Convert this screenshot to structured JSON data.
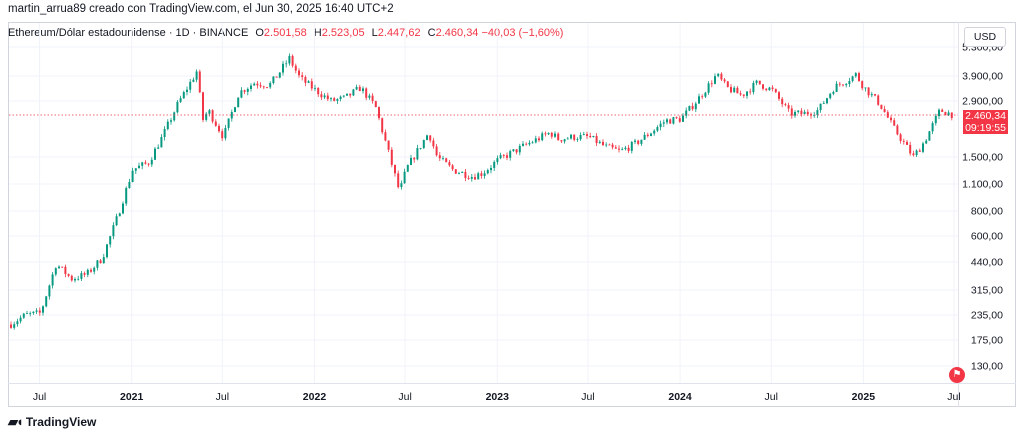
{
  "header": {
    "credit": "martin_arrua89 creado con TradingView.com, el Jun 30, 2025 16:40 UTC+2"
  },
  "legend": {
    "symbol": "Ethereum/Dólar estadounidense · 1D · BINANCE",
    "o_label": "O",
    "o_value": "2.501,58",
    "h_label": "H",
    "h_value": "2.523,05",
    "l_label": "L",
    "l_value": "2.447,62",
    "c_label": "C",
    "c_value": "2.460,34",
    "change": "−40,03 (−1,60%)"
  },
  "axis": {
    "currency": "USD",
    "last_price": "2.460,34",
    "countdown": "09:19:55",
    "y_ticks": [
      "5.300,00",
      "3.900,00",
      "2.900,00",
      "1.500,00",
      "1.100,00",
      "800,00",
      "600,00",
      "440,00",
      "315,00",
      "235,00",
      "175,00",
      "130,00"
    ],
    "x_ticks": [
      "Jul",
      "2021",
      "Jul",
      "2022",
      "Jul",
      "2023",
      "Jul",
      "2024",
      "Jul",
      "2025",
      "Jul"
    ]
  },
  "footer": {
    "brand": "TradingView"
  },
  "colors": {
    "up": "#089981",
    "down": "#f23645",
    "grid": "#f0f3fa",
    "axis_text": "#131722"
  },
  "chart_data": {
    "type": "line",
    "title": "Ethereum/Dólar estadounidense · 1D · BINANCE",
    "scale": "log",
    "ylim": [
      110,
      5500
    ],
    "xlim": [
      "2020-05-01",
      "2025-07-01"
    ],
    "legend_position": "top-left",
    "grid": true,
    "last_price": 2460.34,
    "x": [
      "2020-05-01",
      "2020-06-01",
      "2020-07-01",
      "2020-08-01",
      "2020-09-01",
      "2020-10-01",
      "2020-11-01",
      "2020-12-01",
      "2021-01-01",
      "2021-02-01",
      "2021-03-01",
      "2021-04-01",
      "2021-05-10",
      "2021-05-20",
      "2021-06-01",
      "2021-07-01",
      "2021-08-01",
      "2021-09-01",
      "2021-10-01",
      "2021-11-10",
      "2021-12-01",
      "2022-01-01",
      "2022-02-01",
      "2022-03-01",
      "2022-04-01",
      "2022-05-01",
      "2022-06-18",
      "2022-07-01",
      "2022-08-15",
      "2022-09-01",
      "2022-10-01",
      "2022-11-10",
      "2022-12-01",
      "2023-01-01",
      "2023-02-01",
      "2023-03-01",
      "2023-04-15",
      "2023-05-01",
      "2023-06-01",
      "2023-07-01",
      "2023-08-01",
      "2023-09-01",
      "2023-10-01",
      "2023-11-01",
      "2023-12-01",
      "2024-01-01",
      "2024-02-01",
      "2024-03-12",
      "2024-04-01",
      "2024-05-01",
      "2024-06-01",
      "2024-07-01",
      "2024-08-05",
      "2024-09-01",
      "2024-10-01",
      "2024-11-01",
      "2024-12-15",
      "2025-01-01",
      "2025-02-01",
      "2025-03-01",
      "2025-04-09",
      "2025-05-01",
      "2025-06-01",
      "2025-06-30"
    ],
    "y": [
      210,
      235,
      240,
      430,
      360,
      380,
      460,
      740,
      1300,
      1400,
      1900,
      2800,
      4150,
      2300,
      2600,
      1900,
      3200,
      3600,
      3500,
      4700,
      3800,
      3300,
      2900,
      3000,
      3400,
      2700,
      1000,
      1300,
      2000,
      1500,
      1300,
      1200,
      1250,
      1450,
      1600,
      1750,
      2000,
      1850,
      1900,
      1900,
      1700,
      1600,
      1750,
      2000,
      2300,
      2350,
      2900,
      3950,
      3400,
      3100,
      3600,
      3300,
      2500,
      2500,
      2600,
      3400,
      3950,
      3400,
      2800,
      2100,
      1500,
      1800,
      2600,
      2460
    ]
  }
}
